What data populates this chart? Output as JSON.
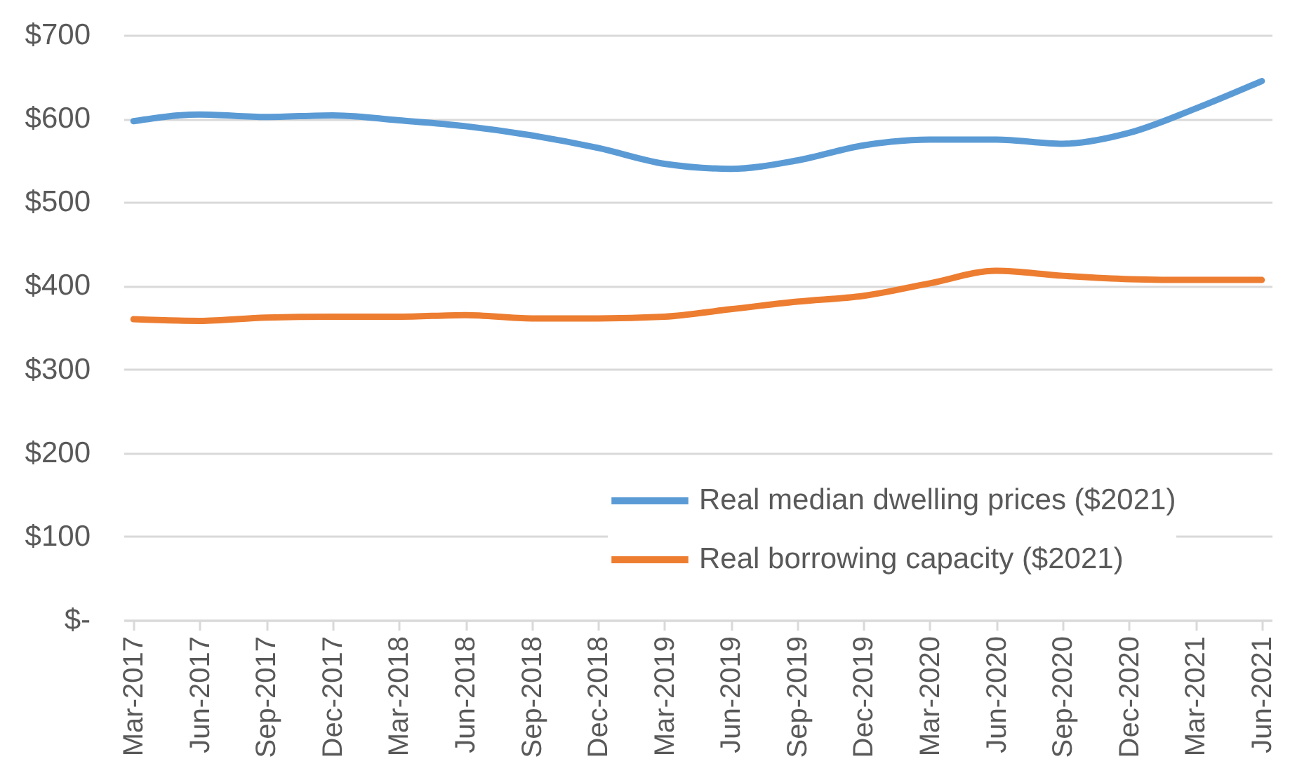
{
  "chart_data": {
    "type": "line",
    "categories": [
      "Mar-2017",
      "Jun-2017",
      "Sep-2017",
      "Dec-2017",
      "Mar-2018",
      "Jun-2018",
      "Sep-2018",
      "Dec-2018",
      "Mar-2019",
      "Jun-2019",
      "Sep-2019",
      "Dec-2019",
      "Mar-2020",
      "Jun-2020",
      "Sep-2020",
      "Dec-2020",
      "Mar-2021",
      "Jun-2021"
    ],
    "series": [
      {
        "name": "Real median dwelling prices ($2021)",
        "color": "#5b9bd5",
        "values": [
          597,
          605,
          602,
          604,
          598,
          591,
          580,
          565,
          546,
          540,
          550,
          568,
          575,
          575,
          570,
          583,
          612,
          645
        ]
      },
      {
        "name": "Real borrowing capacity ($2021)",
        "color": "#ed7d31",
        "values": [
          360,
          358,
          362,
          363,
          363,
          365,
          361,
          361,
          363,
          372,
          381,
          388,
          403,
          418,
          412,
          408,
          407,
          407
        ]
      }
    ],
    "ylim": [
      0,
      700
    ],
    "yticks": [
      {
        "value": 0,
        "label": "$-"
      },
      {
        "value": 100,
        "label": "$100"
      },
      {
        "value": 200,
        "label": "$200"
      },
      {
        "value": 300,
        "label": "$300"
      },
      {
        "value": 400,
        "label": "$400"
      },
      {
        "value": 500,
        "label": "$500"
      },
      {
        "value": 600,
        "label": "$600"
      },
      {
        "value": 700,
        "label": "$700"
      }
    ],
    "grid": "y",
    "legend": "bottom right",
    "line_style": "solid"
  }
}
